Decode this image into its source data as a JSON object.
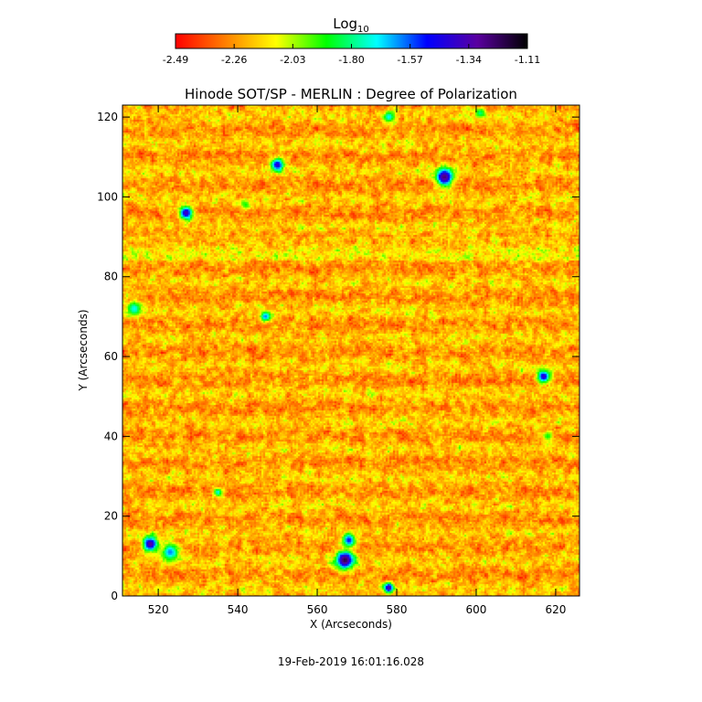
{
  "chart_data": {
    "type": "heatmap",
    "title": "Hinode SOT/SP - MERLIN : Degree of Polarization",
    "xlabel": "X (Arcseconds)",
    "ylabel": "Y (Arcseconds)",
    "xlim": [
      511,
      626
    ],
    "ylim": [
      0,
      123
    ],
    "x_ticks": [
      520,
      540,
      560,
      580,
      600,
      620
    ],
    "y_ticks": [
      0,
      20,
      40,
      60,
      80,
      100,
      120
    ],
    "colorbar": {
      "label_base": "Log",
      "label_sub": "10",
      "min": -2.49,
      "max": -1.11,
      "ticks": [
        "-2.49",
        "-2.26",
        "-2.03",
        "-1.80",
        "-1.57",
        "-1.34",
        "-1.11"
      ],
      "colors": [
        "#ff0000",
        "#ff8000",
        "#ffff00",
        "#00ff00",
        "#00ffff",
        "#0000ff",
        "#5a00a0",
        "#000000"
      ]
    },
    "features": [
      {
        "x": 592,
        "y": 105,
        "v": -1.25,
        "r": 2.2
      },
      {
        "x": 567,
        "y": 9,
        "v": -1.2,
        "r": 2.2
      },
      {
        "x": 568,
        "y": 14,
        "v": -1.5,
        "r": 1.6
      },
      {
        "x": 518,
        "y": 13,
        "v": -1.3,
        "r": 1.8
      },
      {
        "x": 523,
        "y": 11,
        "v": -1.6,
        "r": 2.2
      },
      {
        "x": 527,
        "y": 96,
        "v": -1.35,
        "r": 1.6
      },
      {
        "x": 550,
        "y": 108,
        "v": -1.4,
        "r": 1.6
      },
      {
        "x": 617,
        "y": 55,
        "v": -1.4,
        "r": 1.6
      },
      {
        "x": 578,
        "y": 2,
        "v": -1.3,
        "r": 1.2
      },
      {
        "x": 547,
        "y": 70,
        "v": -1.6,
        "r": 1.3
      },
      {
        "x": 514,
        "y": 72,
        "v": -1.7,
        "r": 1.8
      },
      {
        "x": 578,
        "y": 120,
        "v": -1.7,
        "r": 1.3
      },
      {
        "x": 601,
        "y": 121,
        "v": -1.8,
        "r": 1.2
      },
      {
        "x": 542,
        "y": 98,
        "v": -1.9,
        "r": 1.3
      },
      {
        "x": 618,
        "y": 40,
        "v": -1.9,
        "r": 1.3
      },
      {
        "x": 535,
        "y": 26,
        "v": -1.7,
        "r": 1.1
      }
    ]
  },
  "timestamp": "19-Feb-2019 16:01:16.028"
}
